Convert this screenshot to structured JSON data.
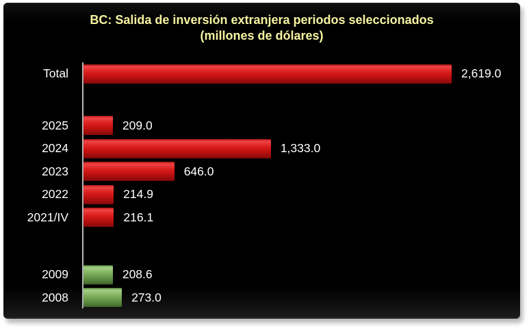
{
  "title": {
    "line1": "BC: Salida de inversión extranjera periodos seleccionados",
    "line2": "(millones de dólares)",
    "color": "#F7F3A0"
  },
  "colors": {
    "background": "#000000",
    "page": "#FFFFFF",
    "title_text": "#F7F3A0",
    "label_text": "#FFFFFF",
    "axis_line": "#B9B9B9",
    "bar_red": "#CE1616",
    "bar_green": "#6D9E4E"
  },
  "chart_data": {
    "type": "bar",
    "orientation": "horizontal",
    "title": "BC: Salida de inversión extranjera periodos seleccionados (millones de dólares)",
    "xlabel": "",
    "ylabel": "",
    "xlim": [
      0,
      2619
    ],
    "grid": false,
    "legend": false,
    "categories": [
      "Total",
      "2025",
      "2024",
      "2023",
      "2022",
      "2021/IV",
      "2009",
      "2008"
    ],
    "values": [
      2619.0,
      209.0,
      1333.0,
      646.0,
      214.9,
      216.1,
      208.6,
      273.0
    ],
    "value_labels": [
      "2,619.0",
      "209.0",
      "1,333.0",
      "646.0",
      "214.9",
      "216.1",
      "208.6",
      "273.0"
    ],
    "bar_color_names": [
      "red",
      "red",
      "red",
      "red",
      "red",
      "red",
      "green",
      "green"
    ],
    "rows": [
      {
        "label": "Total",
        "value": 2619.0,
        "display": "2,619.0",
        "color": "red"
      },
      {
        "spacer": true,
        "height": 42
      },
      {
        "label": "2025",
        "value": 209.0,
        "display": "209.0",
        "color": "red"
      },
      {
        "label": "2024",
        "value": 1333.0,
        "display": "1,333.0",
        "color": "red"
      },
      {
        "label": "2023",
        "value": 646.0,
        "display": "646.0",
        "color": "red"
      },
      {
        "label": "2022",
        "value": 214.9,
        "display": "214.9",
        "color": "red"
      },
      {
        "label": "2021/IV",
        "value": 216.1,
        "display": "216.1",
        "color": "red"
      },
      {
        "spacer": true,
        "height": 50
      },
      {
        "label": "2009",
        "value": 208.6,
        "display": "208.6",
        "color": "green"
      },
      {
        "label": "2008",
        "value": 273.0,
        "display": "273.0",
        "color": "green"
      }
    ]
  }
}
